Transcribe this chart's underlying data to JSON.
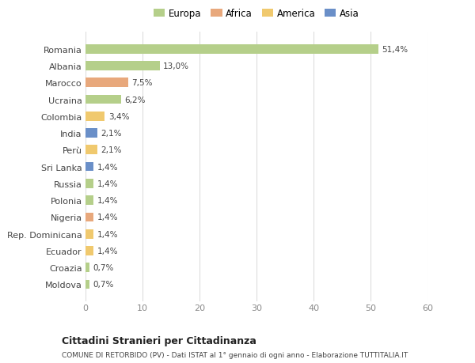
{
  "countries": [
    "Romania",
    "Albania",
    "Marocco",
    "Ucraina",
    "Colombia",
    "India",
    "Perù",
    "Sri Lanka",
    "Russia",
    "Polonia",
    "Nigeria",
    "Rep. Dominicana",
    "Ecuador",
    "Croazia",
    "Moldova"
  ],
  "values": [
    51.4,
    13.0,
    7.5,
    6.2,
    3.4,
    2.1,
    2.1,
    1.4,
    1.4,
    1.4,
    1.4,
    1.4,
    1.4,
    0.7,
    0.7
  ],
  "labels": [
    "51,4%",
    "13,0%",
    "7,5%",
    "6,2%",
    "3,4%",
    "2,1%",
    "2,1%",
    "1,4%",
    "1,4%",
    "1,4%",
    "1,4%",
    "1,4%",
    "1,4%",
    "0,7%",
    "0,7%"
  ],
  "colors": [
    "#b5cf8a",
    "#b5cf8a",
    "#e8a87c",
    "#b5cf8a",
    "#f0c96e",
    "#6a8fc8",
    "#f0c96e",
    "#6a8fc8",
    "#b5cf8a",
    "#b5cf8a",
    "#e8a87c",
    "#f0c96e",
    "#f0c96e",
    "#b5cf8a",
    "#b5cf8a"
  ],
  "legend_labels": [
    "Europa",
    "Africa",
    "America",
    "Asia"
  ],
  "legend_colors": [
    "#b5cf8a",
    "#e8a87c",
    "#f0c96e",
    "#6a8fc8"
  ],
  "xlim": [
    0,
    60
  ],
  "xticks": [
    0,
    10,
    20,
    30,
    40,
    50,
    60
  ],
  "title1": "Cittadini Stranieri per Cittadinanza",
  "title2": "COMUNE DI RETORBIDO (PV) - Dati ISTAT al 1° gennaio di ogni anno - Elaborazione TUTTITALIA.IT",
  "background_color": "#ffffff",
  "bar_height": 0.55
}
